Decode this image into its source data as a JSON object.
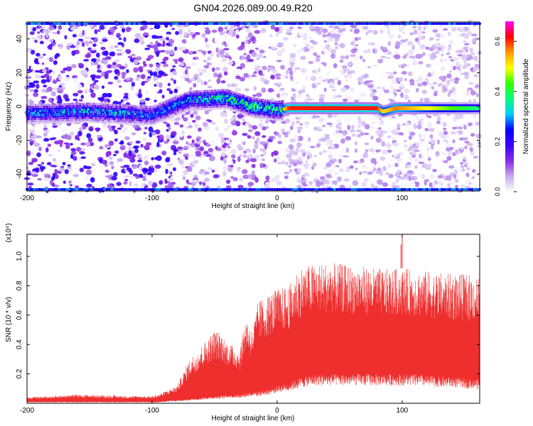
{
  "title": "GN04.2026.089.00.49.R20",
  "chart_data": [
    {
      "type": "heatmap",
      "xlabel": "Height of straight line (km)",
      "ylabel": "Frequency (Hz)",
      "xlim": [
        -200,
        162
      ],
      "ylim": [
        -50,
        50
      ],
      "xticks": [
        -200,
        -100,
        0,
        100
      ],
      "yticks": [
        -40,
        -20,
        0,
        20,
        40
      ],
      "colorbar": {
        "label": "Normalized spectral amplitude",
        "range": [
          0,
          0.68
        ],
        "ticks": [
          0.0,
          0.2,
          0.4,
          0.6
        ],
        "colormap": [
          "#ffffff",
          "#c6a8f0",
          "#8a2be2",
          "#3a00ff",
          "#0000ff",
          "#00ccff",
          "#00ff80",
          "#33ff00",
          "#ffff00",
          "#ff9900",
          "#ff0000",
          "#ff00ff"
        ]
      },
      "ridge": [
        {
          "x": -200,
          "freq": -4,
          "amp": 0.35
        },
        {
          "x": -150,
          "freq": -3,
          "amp": 0.4
        },
        {
          "x": -100,
          "freq": -5,
          "amp": 0.35
        },
        {
          "x": -70,
          "freq": 4,
          "amp": 0.4
        },
        {
          "x": -40,
          "freq": 5,
          "amp": 0.45
        },
        {
          "x": -20,
          "freq": 0,
          "amp": 0.5
        },
        {
          "x": 0,
          "freq": -2,
          "amp": 0.45
        },
        {
          "x": 10,
          "freq": -1,
          "amp": 0.66
        },
        {
          "x": 80,
          "freq": -1,
          "amp": 0.66
        },
        {
          "x": 85,
          "freq": -3,
          "amp": 0.55
        },
        {
          "x": 95,
          "freq": -1,
          "amp": 0.62
        },
        {
          "x": 162,
          "freq": -1,
          "amp": 0.4
        }
      ]
    },
    {
      "type": "area",
      "xlabel": "Height of straight line (km)",
      "ylabel": "SNR (10 * v/v)",
      "yscale_note": "(x10⁴)",
      "xlim": [
        -200,
        162
      ],
      "ylim": [
        0,
        1.15
      ],
      "xticks": [
        -200,
        -100,
        0,
        100
      ],
      "yticks": [
        0.2,
        0.4,
        0.6,
        0.8,
        1.0
      ],
      "series_color": "#ef2e2e",
      "envelope": {
        "x": [
          -200,
          -160,
          -120,
          -100,
          -95,
          -85,
          -80,
          -70,
          -60,
          -50,
          -45,
          -40,
          -30,
          -25,
          -20,
          -15,
          -10,
          -5,
          0,
          10,
          15,
          20,
          30,
          40,
          50,
          60,
          70,
          80,
          90,
          100,
          110,
          120,
          130,
          140,
          150,
          162
        ],
        "upper": [
          0.04,
          0.06,
          0.05,
          0.05,
          0.06,
          0.1,
          0.12,
          0.3,
          0.4,
          0.5,
          0.48,
          0.42,
          0.36,
          0.6,
          0.5,
          0.7,
          0.72,
          0.76,
          0.78,
          0.8,
          0.9,
          0.93,
          0.95,
          0.96,
          0.95,
          0.94,
          0.93,
          0.92,
          0.91,
          0.92,
          0.91,
          0.9,
          0.89,
          0.88,
          0.88,
          0.87
        ],
        "lower": [
          0.01,
          0.01,
          0.01,
          0.01,
          0.01,
          0.02,
          0.02,
          0.03,
          0.04,
          0.05,
          0.05,
          0.06,
          0.06,
          0.07,
          0.08,
          0.08,
          0.09,
          0.1,
          0.12,
          0.14,
          0.16,
          0.18,
          0.2,
          0.2,
          0.2,
          0.2,
          0.2,
          0.2,
          0.2,
          0.2,
          0.2,
          0.19,
          0.18,
          0.18,
          0.17,
          0.16
        ]
      },
      "spikes": [
        {
          "x": 100,
          "y": 1.15
        },
        {
          "x": 99,
          "y": 1.08
        }
      ]
    }
  ]
}
